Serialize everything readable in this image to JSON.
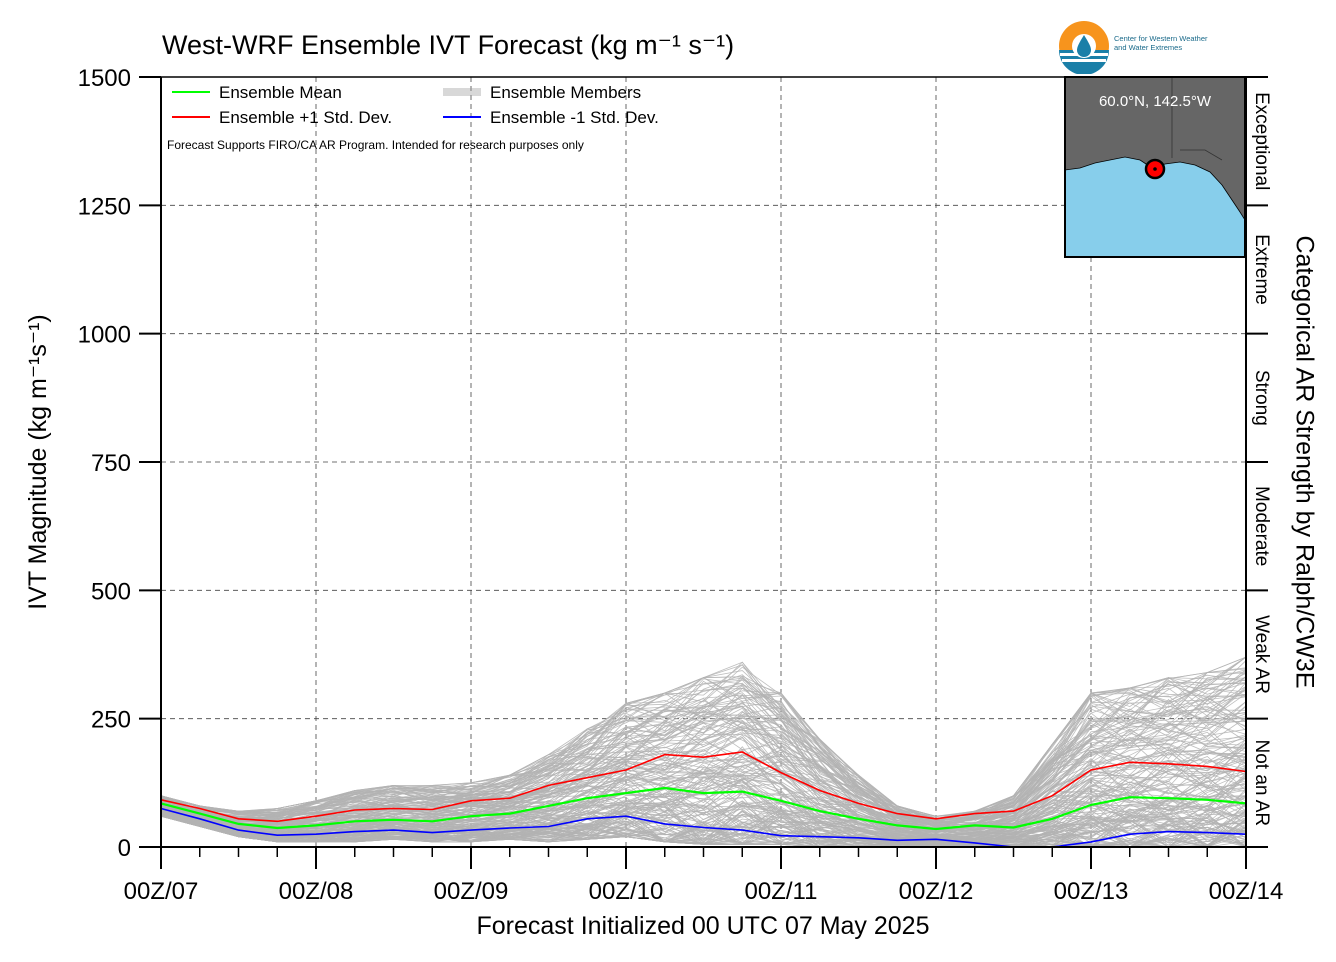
{
  "title": "West-WRF Ensemble IVT Forecast (kg m⁻¹ s⁻¹)",
  "organization": {
    "name_line1": "Center for Western Weather",
    "name_line2": "and Water Extremes",
    "logo_icon": "cw3e-water-drop-logo-icon"
  },
  "disclaimer": "Forecast Supports FIRO/CA AR Program. Intended for research purposes only",
  "inset_map": {
    "location_label": "60.0°N, 142.5°W",
    "ocean_color": "#87ceeb",
    "land_color": "#666666",
    "marker_color": "#ff0000"
  },
  "colors": {
    "mean": "#00ff00",
    "plus1": "#ff0000",
    "minus1": "#0000ff",
    "members": "#b3b3b3"
  },
  "chart_data": {
    "type": "line",
    "title": "West-WRF Ensemble IVT Forecast (kg m⁻¹ s⁻¹)",
    "xlabel": "Forecast Initialized 00 UTC 07 May 2025",
    "ylabel": "IVT Magnitude (kg m⁻¹s⁻¹)",
    "right_label": "Categorical AR Strength by Ralph/CW3E",
    "ylim": [
      0,
      1500
    ],
    "yticks": [
      "0",
      "250",
      "500",
      "750",
      "1000",
      "1250",
      "1500"
    ],
    "yticks_values": [
      0,
      250,
      500,
      750,
      1000,
      1250,
      1500
    ],
    "xlim": [
      0,
      168
    ],
    "x_tick_labels": [
      "00Z/07",
      "00Z/08",
      "00Z/09",
      "00Z/10",
      "00Z/11",
      "00Z/12",
      "00Z/13",
      "00Z/14"
    ],
    "x_tick_hours": [
      0,
      24,
      48,
      72,
      96,
      120,
      144,
      168
    ],
    "x_minor_step_hours": 6,
    "grid": true,
    "legend_position": "top-left",
    "legend": [
      {
        "label": "Ensemble Mean",
        "style": "mean"
      },
      {
        "label": "Ensemble +1 Std. Dev.",
        "style": "plus1"
      },
      {
        "label": "Ensemble Members",
        "style": "members"
      },
      {
        "label": "Ensemble -1 Std. Dev.",
        "style": "minus1"
      }
    ],
    "categories_ar": [
      {
        "label": "Not an AR",
        "from": 0,
        "to": 250
      },
      {
        "label": "Weak AR",
        "from": 250,
        "to": 500
      },
      {
        "label": "Moderate",
        "from": 500,
        "to": 750
      },
      {
        "label": "Strong",
        "from": 750,
        "to": 1000
      },
      {
        "label": "Extreme",
        "from": 1000,
        "to": 1250
      },
      {
        "label": "Exceptional",
        "from": 1250,
        "to": 1500
      }
    ],
    "x_hours": [
      0,
      6,
      12,
      18,
      24,
      30,
      36,
      42,
      48,
      54,
      60,
      66,
      72,
      78,
      84,
      90,
      96,
      102,
      108,
      114,
      120,
      126,
      132,
      138,
      144,
      150,
      156,
      162,
      168
    ],
    "series": [
      {
        "name": "Ensemble Mean",
        "style": "mean",
        "values": [
          85,
          65,
          45,
          37,
          42,
          50,
          53,
          50,
          60,
          65,
          80,
          95,
          105,
          115,
          105,
          108,
          90,
          70,
          55,
          42,
          35,
          42,
          38,
          55,
          82,
          97,
          95,
          92,
          85
        ]
      },
      {
        "name": "Ensemble +1 Std. Dev.",
        "style": "plus1",
        "values": [
          92,
          75,
          55,
          50,
          60,
          72,
          75,
          73,
          90,
          95,
          120,
          135,
          150,
          180,
          175,
          185,
          145,
          110,
          85,
          65,
          55,
          65,
          70,
          100,
          150,
          165,
          162,
          157,
          147
        ]
      },
      {
        "name": "Ensemble -1 Std. Dev.",
        "style": "minus1",
        "values": [
          75,
          55,
          33,
          23,
          25,
          30,
          33,
          28,
          33,
          37,
          40,
          55,
          60,
          45,
          38,
          33,
          22,
          20,
          18,
          13,
          15,
          8,
          0,
          -5,
          10,
          25,
          30,
          28,
          25
        ]
      },
      {
        "name": "Ensemble Members",
        "style": "members",
        "ensemble_spread": true,
        "upper": [
          100,
          80,
          70,
          75,
          90,
          110,
          120,
          120,
          125,
          140,
          180,
          230,
          280,
          300,
          330,
          360,
          300,
          210,
          140,
          80,
          60,
          70,
          100,
          200,
          300,
          310,
          330,
          340,
          370
        ],
        "lower": [
          60,
          40,
          20,
          10,
          10,
          10,
          15,
          10,
          10,
          15,
          10,
          15,
          20,
          10,
          5,
          5,
          5,
          0,
          0,
          0,
          0,
          0,
          0,
          0,
          0,
          0,
          0,
          0,
          0
        ],
        "member_count": 200
      }
    ]
  }
}
